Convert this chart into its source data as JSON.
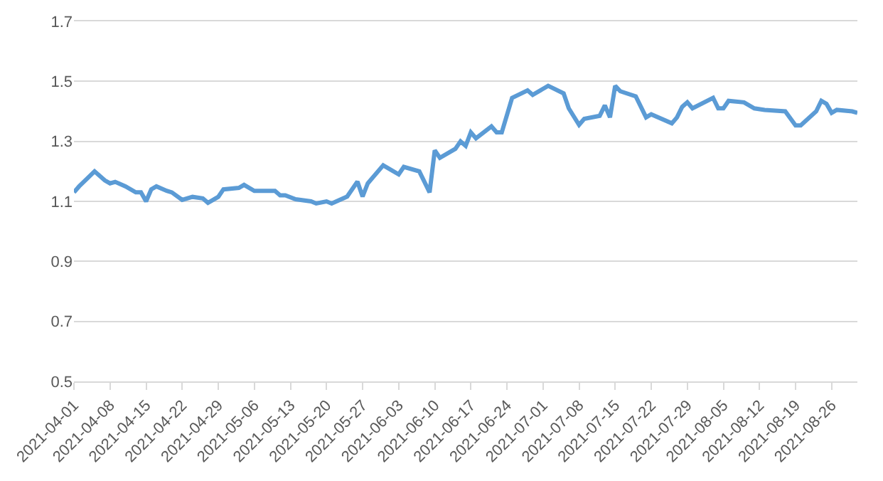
{
  "chart_data": {
    "type": "line",
    "color": "#5b9bd5",
    "x": [
      "2021-04-01",
      "2021-04-02",
      "2021-04-05",
      "2021-04-07",
      "2021-04-08",
      "2021-04-09",
      "2021-04-11",
      "2021-04-13",
      "2021-04-14",
      "2021-04-15",
      "2021-04-16",
      "2021-04-17",
      "2021-04-19",
      "2021-04-20",
      "2021-04-22",
      "2021-04-24",
      "2021-04-26",
      "2021-04-27",
      "2021-04-29",
      "2021-04-30",
      "2021-05-03",
      "2021-05-04",
      "2021-05-06",
      "2021-05-10",
      "2021-05-11",
      "2021-05-12",
      "2021-05-14",
      "2021-05-17",
      "2021-05-18",
      "2021-05-20",
      "2021-05-21",
      "2021-05-24",
      "2021-05-26",
      "2021-05-27",
      "2021-05-28",
      "2021-05-31",
      "2021-06-03",
      "2021-06-04",
      "2021-06-07",
      "2021-06-09",
      "2021-06-10",
      "2021-06-11",
      "2021-06-14",
      "2021-06-15",
      "2021-06-16",
      "2021-06-17",
      "2021-06-18",
      "2021-06-21",
      "2021-06-22",
      "2021-06-23",
      "2021-06-25",
      "2021-06-28",
      "2021-06-29",
      "2021-07-02",
      "2021-07-05",
      "2021-07-06",
      "2021-07-08",
      "2021-07-09",
      "2021-07-12",
      "2021-07-13",
      "2021-07-14",
      "2021-07-15",
      "2021-07-16",
      "2021-07-19",
      "2021-07-21",
      "2021-07-22",
      "2021-07-26",
      "2021-07-27",
      "2021-07-28",
      "2021-07-29",
      "2021-07-30",
      "2021-08-03",
      "2021-08-04",
      "2021-08-05",
      "2021-08-06",
      "2021-08-09",
      "2021-08-11",
      "2021-08-13",
      "2021-08-17",
      "2021-08-19",
      "2021-08-20",
      "2021-08-23",
      "2021-08-24",
      "2021-08-25",
      "2021-08-26",
      "2021-08-27",
      "2021-08-30",
      "2021-08-31"
    ],
    "values": [
      1.13,
      1.15,
      1.2,
      1.17,
      1.16,
      1.165,
      1.15,
      1.13,
      1.13,
      1.1,
      1.14,
      1.15,
      1.135,
      1.13,
      1.105,
      1.115,
      1.11,
      1.095,
      1.115,
      1.14,
      1.145,
      1.155,
      1.135,
      1.135,
      1.12,
      1.12,
      1.107,
      1.1,
      1.093,
      1.1,
      1.093,
      1.116,
      1.166,
      1.116,
      1.16,
      1.22,
      1.19,
      1.215,
      1.2,
      1.13,
      1.27,
      1.245,
      1.275,
      1.3,
      1.285,
      1.33,
      1.31,
      1.35,
      1.33,
      1.33,
      1.445,
      1.47,
      1.455,
      1.485,
      1.46,
      1.41,
      1.355,
      1.375,
      1.385,
      1.42,
      1.38,
      1.485,
      1.467,
      1.45,
      1.38,
      1.39,
      1.36,
      1.38,
      1.415,
      1.43,
      1.41,
      1.445,
      1.41,
      1.41,
      1.435,
      1.43,
      1.41,
      1.405,
      1.4,
      1.353,
      1.353,
      1.4,
      1.435,
      1.425,
      1.395,
      1.405,
      1.4,
      1.395
    ],
    "xlim": [
      "2021-04-01",
      "2021-08-31"
    ],
    "xticks": [
      "2021-04-01",
      "2021-04-08",
      "2021-04-15",
      "2021-04-22",
      "2021-04-29",
      "2021-05-06",
      "2021-05-13",
      "2021-05-20",
      "2021-05-27",
      "2021-06-03",
      "2021-06-10",
      "2021-06-17",
      "2021-06-24",
      "2021-07-01",
      "2021-07-08",
      "2021-07-15",
      "2021-07-22",
      "2021-07-29",
      "2021-08-05",
      "2021-08-12",
      "2021-08-19",
      "2021-08-26"
    ],
    "ylim": [
      0.5,
      1.7
    ],
    "yticks": [
      0.5,
      0.7,
      0.9,
      1.1,
      1.3,
      1.5,
      1.7
    ],
    "grid": "y",
    "marker": "none",
    "line_style": "solid"
  }
}
